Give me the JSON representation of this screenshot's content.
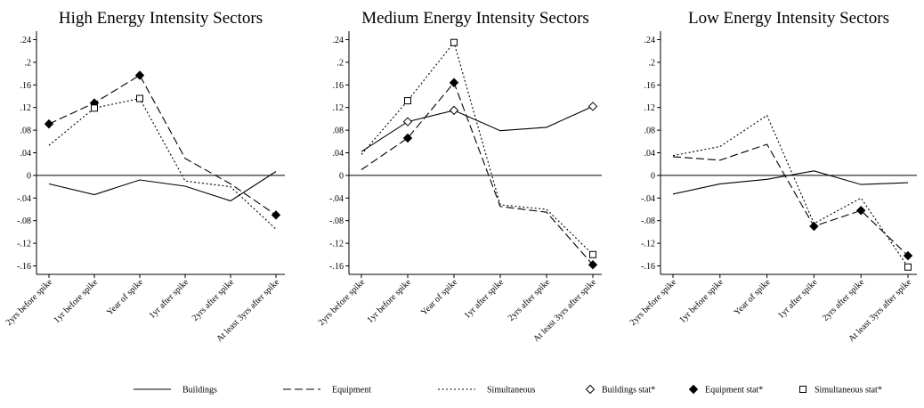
{
  "chart_data": [
    {
      "type": "line",
      "title": "High Energy Intensity Sectors",
      "categories": [
        "2yrs before spike",
        "1yr before spike",
        "Year of spike",
        "1yr after spike",
        "2yrs after spike",
        "At least 3yrs after spike"
      ],
      "yticks": [
        ".24",
        ".2",
        ".16",
        ".12",
        ".08",
        ".04",
        "0",
        "-.04",
        "-.08",
        "-.12",
        "-.16"
      ],
      "ylim": [
        -0.175,
        0.255
      ],
      "series": [
        {
          "name": "Buildings",
          "values": [
            -0.015,
            -0.034,
            -0.008,
            -0.019,
            -0.045,
            0.007
          ]
        },
        {
          "name": "Equipment",
          "values": [
            0.091,
            0.128,
            0.177,
            0.03,
            -0.015,
            -0.07
          ]
        },
        {
          "name": "Simultaneous",
          "values": [
            0.053,
            0.119,
            0.136,
            -0.01,
            -0.02,
            -0.095
          ]
        }
      ],
      "markers": [
        {
          "series": "Equipment",
          "style": "diamond-filled",
          "points": [
            [
              0,
              0.091
            ],
            [
              1,
              0.128
            ],
            [
              2,
              0.177
            ],
            [
              5,
              -0.07
            ]
          ]
        },
        {
          "series": "Simultaneous",
          "style": "square-open",
          "points": [
            [
              1,
              0.119
            ],
            [
              2,
              0.136
            ]
          ]
        }
      ],
      "zero_line": true
    },
    {
      "type": "line",
      "title": "Medium Energy Intensity Sectors",
      "categories": [
        "2yrs before spike",
        "1yr before spike",
        "Year of spike",
        "1yr after spike",
        "2yrs after spike",
        "At least 3yrs after spike"
      ],
      "yticks": [
        ".24",
        ".2",
        ".16",
        ".12",
        ".08",
        ".04",
        "0",
        "-.04",
        "-.08",
        "-.12",
        "-.16"
      ],
      "ylim": [
        -0.175,
        0.255
      ],
      "series": [
        {
          "name": "Buildings",
          "values": [
            0.042,
            0.095,
            0.115,
            0.079,
            0.085,
            0.122
          ]
        },
        {
          "name": "Equipment",
          "values": [
            0.01,
            0.066,
            0.164,
            -0.055,
            -0.065,
            -0.158
          ]
        },
        {
          "name": "Simultaneous",
          "values": [
            0.037,
            0.132,
            0.235,
            -0.052,
            -0.06,
            -0.14
          ]
        }
      ],
      "markers": [
        {
          "series": "Buildings",
          "style": "diamond-open",
          "points": [
            [
              1,
              0.095
            ],
            [
              2,
              0.115
            ],
            [
              5,
              0.122
            ]
          ]
        },
        {
          "series": "Equipment",
          "style": "diamond-filled",
          "points": [
            [
              1,
              0.066
            ],
            [
              2,
              0.164
            ],
            [
              5,
              -0.158
            ]
          ]
        },
        {
          "series": "Simultaneous",
          "style": "square-open",
          "points": [
            [
              1,
              0.132
            ],
            [
              2,
              0.235
            ],
            [
              5,
              -0.14
            ]
          ]
        }
      ],
      "zero_line": true
    },
    {
      "type": "line",
      "title": "Low Energy Intensity Sectors",
      "categories": [
        "2yrs before spike",
        "1yr before spike",
        "Year of spike",
        "1yr after spike",
        "2yrs after spike",
        "At least 3yrs after spike"
      ],
      "yticks": [
        ".24",
        ".2",
        ".16",
        ".12",
        ".08",
        ".04",
        "0",
        "-.04",
        "-.08",
        "-.12",
        "-.16"
      ],
      "ylim": [
        -0.175,
        0.255
      ],
      "series": [
        {
          "name": "Buildings",
          "values": [
            -0.033,
            -0.015,
            -0.007,
            0.008,
            -0.016,
            -0.013
          ]
        },
        {
          "name": "Equipment",
          "values": [
            0.033,
            0.027,
            0.055,
            -0.09,
            -0.062,
            -0.142
          ]
        },
        {
          "name": "Simultaneous",
          "values": [
            0.035,
            0.051,
            0.106,
            -0.085,
            -0.04,
            -0.162
          ]
        }
      ],
      "markers": [
        {
          "series": "Equipment",
          "style": "diamond-filled",
          "points": [
            [
              3,
              -0.09
            ],
            [
              4,
              -0.062
            ],
            [
              5,
              -0.142
            ]
          ]
        },
        {
          "series": "Simultaneous",
          "style": "square-open",
          "points": [
            [
              5,
              -0.162
            ]
          ]
        }
      ],
      "zero_line": true
    }
  ],
  "legend": {
    "placement": "bottom",
    "items": [
      {
        "label": "Buildings",
        "kind": "line",
        "style": "solid"
      },
      {
        "label": "Equipment",
        "kind": "line",
        "style": "dashed"
      },
      {
        "label": "Simultaneous",
        "kind": "line",
        "style": "dotted"
      },
      {
        "label": "Buildings stat*",
        "kind": "marker",
        "style": "diamond-open"
      },
      {
        "label": "Equipment stat*",
        "kind": "marker",
        "style": "diamond-filled"
      },
      {
        "label": "Simultaneous stat*",
        "kind": "marker",
        "style": "square-open"
      }
    ]
  },
  "colors": {
    "ink": "#000000",
    "background": "#ffffff"
  }
}
